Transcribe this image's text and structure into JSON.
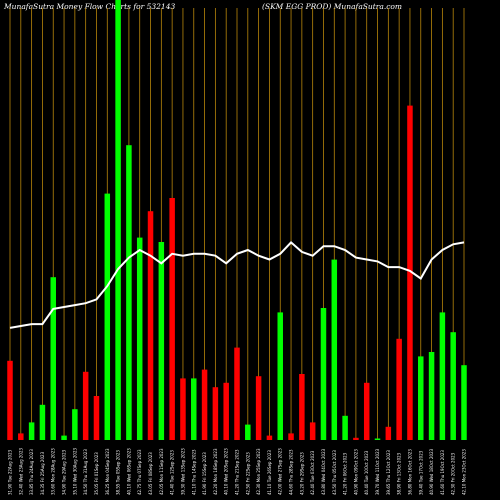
{
  "chart_data": {
    "type": "bar",
    "title_left": "MunafaSutra  Money Flow  Charts for 532143",
    "title_right": "(SKM EGG PROD) MunafaSutra.com",
    "colors": {
      "up": "#00ff00",
      "down": "#ff0000",
      "grid": "#b8860b",
      "line": "#ffffff",
      "background": "#000000"
    },
    "categories": [
      "31.90 Tue 22Aug 2023",
      "32.40 Wed 23Aug 2023",
      "33.85 Thu 24Aug 2023",
      "34.35 Fri 25Aug 2023",
      "33.60 Mon 28Aug 2023",
      "34.90 Tue 29Aug 2023",
      "35.10 Wed 30Aug 2023",
      "34.50 Thu 31Aug 2023",
      "35.05 Fri 01Sep 2023",
      "36.25 Mon 04Sep 2023",
      "38.55 Tue 05Sep 2023",
      "40.10 Wed 06Sep 2023",
      "42.75 Thu 07Sep 2023",
      "43.05 Fri 08Sep 2023",
      "42.05 Mon 11Sep 2023",
      "41.40 Tue 12Sep 2023",
      "39.30 Wed 13Sep 2023",
      "41.10 Thu 14Sep 2023",
      "41.90 Fri 15Sep 2023",
      "42.20 Mon 18Sep 2023",
      "40.10 Wed 20Sep 2023",
      "41.20 Thu 21Sep 2023",
      "42.50 Fri 22Sep 2023",
      "42.30 Mon 25Sep 2023",
      "41.10 Tue 26Sep 2023",
      "42.00 Wed 27Sep 2023",
      "44.60 Thu 28Sep 2023",
      "43.20 Fri 29Sep 2023",
      "42.40 Tue 03Oct 2023",
      "43.80 Wed 04Oct 2023",
      "43.50 Thu 05Oct 2023",
      "41.20 Fri 06Oct 2023",
      "40.90 Mon 09Oct 2023",
      "40.40 Tue 10Oct 2023",
      "39.70 Wed 11Oct 2023",
      "39.65 Thu 12Oct 2023",
      "38.90 Fri 13Oct 2023",
      "36.80 Mon 16Oct 2023",
      "39.40 Tue 17Oct 2023",
      "40.90 Wed 18Oct 2023",
      "41.60 Thu 19Oct 2023",
      "42.30 Fri 20Oct 2023",
      "42.10 Mon 23Oct 2023"
    ],
    "volumes": [
      18,
      1.5,
      4,
      8,
      37,
      1,
      7,
      15.5,
      10,
      56,
      100,
      67,
      46,
      52,
      45,
      55,
      14,
      14,
      16,
      12,
      13,
      21,
      3.5,
      14.5,
      1,
      29,
      1.5,
      15,
      4,
      30,
      41,
      5.5,
      0.5,
      13,
      0.2,
      3,
      23,
      76,
      19,
      20,
      29,
      24.5,
      17
    ],
    "directions": [
      "down",
      "down",
      "up",
      "up",
      "up",
      "up",
      "up",
      "down",
      "down",
      "up",
      "up",
      "up",
      "up",
      "down",
      "up",
      "down",
      "down",
      "up",
      "down",
      "down",
      "down",
      "down",
      "up",
      "down",
      "down",
      "up",
      "down",
      "down",
      "down",
      "up",
      "up",
      "up",
      "down",
      "down",
      "up",
      "down",
      "down",
      "down",
      "up",
      "up",
      "up",
      "up",
      "up"
    ],
    "line": [
      59,
      60,
      61,
      61,
      69,
      70,
      71,
      72,
      74,
      81,
      90,
      96,
      100,
      97,
      93,
      98,
      97,
      98,
      98,
      97,
      93,
      98,
      100,
      97,
      95,
      98,
      104,
      99,
      97,
      102,
      102,
      100,
      96,
      95,
      94,
      91,
      91,
      89,
      85,
      95,
      100,
      103,
      104
    ]
  }
}
